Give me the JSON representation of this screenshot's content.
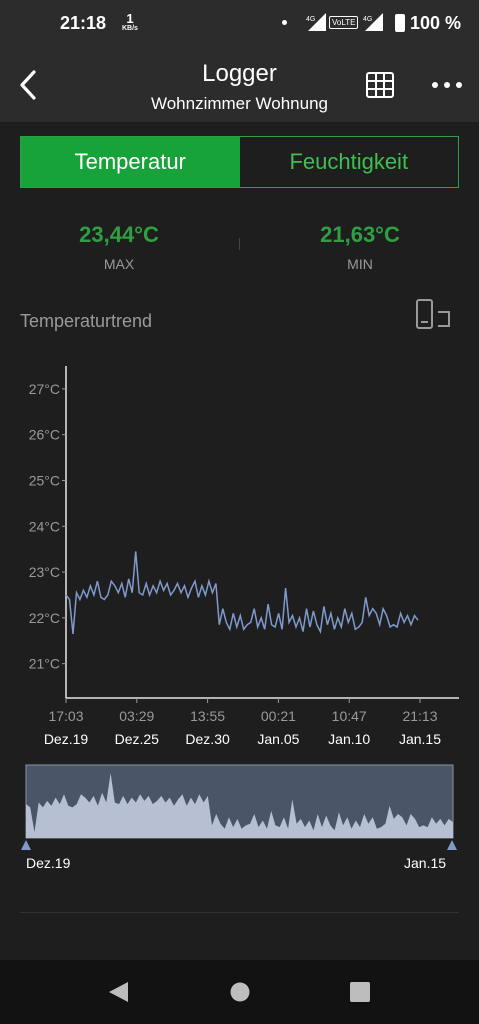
{
  "status_bar": {
    "time": "21:18",
    "net_speed": "1",
    "net_unit": "KB/s",
    "signal_1": "4G",
    "volte": "VoLTE",
    "signal_2": "4G",
    "battery": "100 %"
  },
  "app_bar": {
    "title": "Logger",
    "subtitle": "Wohnzimmer Wohnung",
    "icons": [
      "back-arrow-icon",
      "table-icon",
      "more-options-icon"
    ]
  },
  "tabs": [
    {
      "label": "Temperatur",
      "active": true
    },
    {
      "label": "Feuchtigkeit",
      "active": false
    }
  ],
  "stats": {
    "max_value": "23,44°C",
    "max_label": "MAX",
    "min_value": "21,63°C",
    "min_label": "MIN"
  },
  "section": {
    "title": "Temperaturtrend",
    "rotate_icon": "rotate-screen-icon"
  },
  "colors": {
    "accent": "#18a23a",
    "value_green": "#2ea043",
    "line": "#7f9acb",
    "navigator_fill": "#b7c0d3",
    "navigator_bg": "#4b5568"
  },
  "chart_data": {
    "type": "line",
    "title": "Temperaturtrend",
    "y_ticks": [
      "21°C",
      "22°C",
      "23°C",
      "24°C",
      "25°C",
      "26°C",
      "27°C"
    ],
    "ylim": [
      20.25,
      27.5
    ],
    "x_ticks": [
      {
        "time": "17:03",
        "date": "Dez.19"
      },
      {
        "time": "03:29",
        "date": "Dez.25"
      },
      {
        "time": "13:55",
        "date": "Dez.30"
      },
      {
        "time": "00:21",
        "date": "Jan.05"
      },
      {
        "time": "10:47",
        "date": "Jan.10"
      },
      {
        "time": "21:13",
        "date": "Jan.15"
      }
    ],
    "series": [
      {
        "values": [
          22.5,
          22.4,
          21.65,
          22.55,
          22.4,
          22.6,
          22.45,
          22.7,
          22.5,
          22.8,
          22.45,
          22.4,
          22.5,
          22.8,
          22.7,
          22.55,
          22.75,
          22.45,
          22.85,
          22.55,
          23.45,
          22.55,
          22.5,
          22.75,
          22.5,
          22.7,
          22.55,
          22.8,
          22.6,
          22.75,
          22.5,
          22.6,
          22.75,
          22.55,
          22.7,
          22.45,
          22.65,
          22.8,
          22.45,
          22.7,
          22.5,
          22.8,
          22.55,
          22.75,
          21.85,
          22.2,
          21.9,
          21.75,
          22.1,
          21.8,
          22.05,
          21.75,
          21.85,
          21.9,
          22.2,
          21.8,
          22.0,
          21.75,
          22.3,
          21.85,
          21.8,
          22.1,
          21.75,
          22.65,
          21.9,
          22.05,
          21.8,
          22.0,
          21.7,
          22.2,
          21.8,
          22.15,
          21.85,
          21.7,
          22.25,
          21.85,
          22.1,
          21.75,
          22.0,
          21.8,
          22.2,
          21.9,
          22.1,
          21.75,
          21.8,
          21.9,
          22.45,
          22.05,
          22.2,
          22.1,
          21.85,
          22.2,
          22.05,
          21.8,
          21.85,
          21.8,
          22.1,
          21.9,
          22.05,
          21.85,
          22.05,
          21.95
        ]
      }
    ],
    "navigator": {
      "start_label": "Dez.19",
      "end_label": "Jan.15"
    }
  },
  "nav_bar": [
    "back-triangle-icon",
    "home-circle-icon",
    "recents-square-icon"
  ]
}
